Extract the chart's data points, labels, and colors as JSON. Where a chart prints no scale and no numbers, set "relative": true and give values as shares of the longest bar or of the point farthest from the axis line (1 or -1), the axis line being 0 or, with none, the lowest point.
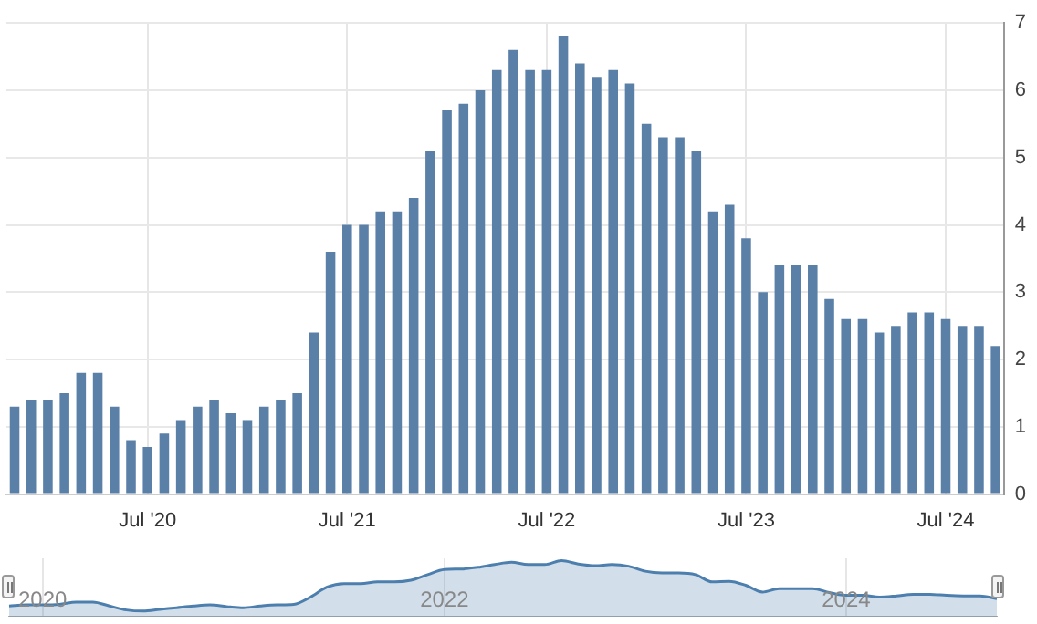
{
  "chart_data": [
    {
      "type": "bar",
      "categories": [
        null,
        null,
        null,
        null,
        null,
        null,
        null,
        null,
        "Jul '20",
        null,
        null,
        null,
        null,
        null,
        null,
        null,
        null,
        null,
        null,
        null,
        "Jul '21",
        null,
        null,
        null,
        null,
        null,
        null,
        null,
        null,
        null,
        null,
        null,
        "Jul '22",
        null,
        null,
        null,
        null,
        null,
        null,
        null,
        null,
        null,
        null,
        null,
        "Jul '23",
        null,
        null,
        null,
        null,
        null,
        null,
        null,
        null,
        null,
        null,
        null,
        "Jul '24",
        null,
        null,
        null
      ],
      "values": [
        1.3,
        1.4,
        1.4,
        1.5,
        1.8,
        1.8,
        1.3,
        0.8,
        0.7,
        0.9,
        1.1,
        1.3,
        1.4,
        1.2,
        1.1,
        1.3,
        1.4,
        1.5,
        2.4,
        3.6,
        4.0,
        4.0,
        4.2,
        4.2,
        4.4,
        5.1,
        5.7,
        5.8,
        6.0,
        6.3,
        6.6,
        6.3,
        6.3,
        6.8,
        6.4,
        6.2,
        6.3,
        6.1,
        5.5,
        5.3,
        5.3,
        5.1,
        4.2,
        4.3,
        3.8,
        3.0,
        3.4,
        3.4,
        3.4,
        2.9,
        2.6,
        2.6,
        2.4,
        2.5,
        2.7,
        2.7,
        2.6,
        2.5,
        2.5,
        2.2
      ],
      "color": "#5b80a8",
      "ylim": [
        0,
        7
      ],
      "yticks": [
        0,
        1,
        2,
        3,
        4,
        5,
        6,
        7
      ],
      "grid": true
    },
    {
      "type": "area",
      "categories": [
        null,
        null,
        "2020",
        null,
        null,
        null,
        null,
        null,
        null,
        null,
        null,
        null,
        null,
        null,
        null,
        null,
        null,
        null,
        null,
        null,
        null,
        null,
        null,
        null,
        null,
        null,
        "2022",
        null,
        null,
        null,
        null,
        null,
        null,
        null,
        null,
        null,
        null,
        null,
        null,
        null,
        null,
        null,
        null,
        null,
        null,
        null,
        null,
        null,
        null,
        null,
        "2024",
        null,
        null,
        null,
        null,
        null,
        null,
        null,
        null,
        null
      ],
      "values": [
        0.19,
        0.21,
        0.21,
        0.22,
        0.26,
        0.26,
        0.19,
        0.12,
        0.1,
        0.13,
        0.16,
        0.19,
        0.21,
        0.18,
        0.16,
        0.19,
        0.21,
        0.22,
        0.35,
        0.53,
        0.59,
        0.59,
        0.62,
        0.62,
        0.65,
        0.75,
        0.84,
        0.85,
        0.88,
        0.93,
        0.97,
        0.93,
        0.93,
        1,
        0.94,
        0.91,
        0.93,
        0.9,
        0.81,
        0.78,
        0.78,
        0.75,
        0.62,
        0.63,
        0.56,
        0.44,
        0.5,
        0.5,
        0.5,
        0.43,
        0.38,
        0.38,
        0.35,
        0.37,
        0.4,
        0.4,
        0.38,
        0.37,
        0.37,
        0.32
      ],
      "color": "#4d7fae",
      "relative": true,
      "grid": "x",
      "tick_labels": "x"
    }
  ]
}
